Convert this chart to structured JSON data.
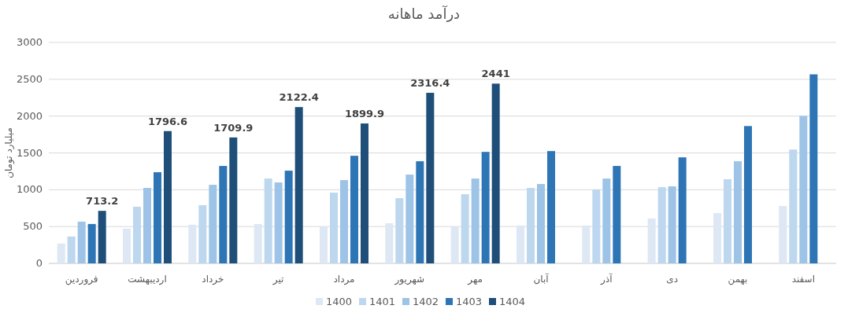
{
  "chart_data": {
    "type": "bar",
    "title": "درآمد ماهانه",
    "ylabel": "میلیارد تومان",
    "categories": [
      "فروردین",
      "اردیبهشت",
      "خرداد",
      "تیر",
      "مرداد",
      "شهریور",
      "مهر",
      "آبان",
      "آذر",
      "دی",
      "بهمن",
      "اسفند"
    ],
    "series": [
      {
        "name": "1400",
        "color": "#dde8f4",
        "values": [
          270,
          472,
          525,
          535,
          500,
          546,
          500,
          514,
          514,
          610,
          684,
          780
        ]
      },
      {
        "name": "1401",
        "color": "#bdd7ee",
        "values": [
          365,
          770,
          791,
          1152,
          961,
          886,
          940,
          1025,
          1004,
          1035,
          1142,
          1546
        ]
      },
      {
        "name": "1402",
        "color": "#9dc3e6",
        "values": [
          567,
          1025,
          1067,
          1099,
          1131,
          1206,
          1152,
          1078,
          1152,
          1046,
          1387,
          2003
        ]
      },
      {
        "name": "1403",
        "color": "#2e75b6",
        "values": [
          535,
          1238,
          1323,
          1259,
          1461,
          1387,
          1514,
          1525,
          1323,
          1440,
          1865,
          2567
        ]
      },
      {
        "name": "1404",
        "color": "#1f4e79",
        "values": [
          713.2,
          1796.6,
          1709.9,
          2122.4,
          1899.9,
          2316.4,
          2441,
          null,
          null,
          null,
          null,
          null
        ],
        "value_labels": [
          "713.2",
          "1796.6",
          "1709.9",
          "2122.4",
          "1899.9",
          "2316.4",
          "2441",
          null,
          null,
          null,
          null,
          null
        ]
      }
    ],
    "ylim": [
      0,
      3000
    ],
    "yticks": [
      0,
      500,
      1000,
      1500,
      2000,
      2500,
      3000
    ],
    "grid": "y",
    "legend": "bottom"
  }
}
